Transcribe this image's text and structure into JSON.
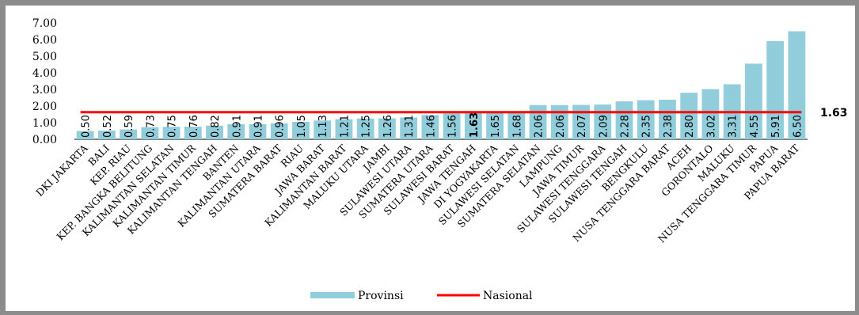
{
  "chart_data": {
    "type": "bar",
    "categories": [
      "DKI JAKARTA",
      "BALI",
      "KEP. RIAU",
      "KEP. BANGKA BELITUNG",
      "KALIMANTAN SELATAN",
      "KALIMANTAN TIMUR",
      "KALIMANTAN TENGAH",
      "BANTEN",
      "KALIMANTAN UTARA",
      "SUMATERA BARAT",
      "RIAU",
      "JAWA BARAT",
      "KALIMANTAN BARAT",
      "MALUKU UTARA",
      "JAMBI",
      "SULAWESI UTARA",
      "SUMATERA UTARA",
      "SULAWESI BARAT",
      "JAWA TENGAH",
      "DI YOGYAKARTA",
      "SULAWESI SELATAN",
      "SUMATERA SELATAN",
      "LAMPUNG",
      "JAWA TIMUR",
      "SULAWESI TENGGARA",
      "SULAWESI TENGAH",
      "BENGKULU",
      "NUSA TENGGARA BARAT",
      "ACEH",
      "GORONTALO",
      "MALUKU",
      "NUSA TENGGARA TIMUR",
      "PAPUA",
      "PAPUA BARAT"
    ],
    "values": [
      0.5,
      0.52,
      0.59,
      0.73,
      0.75,
      0.76,
      0.82,
      0.91,
      0.91,
      0.96,
      1.05,
      1.13,
      1.21,
      1.25,
      1.26,
      1.31,
      1.46,
      1.56,
      1.63,
      1.65,
      1.68,
      2.06,
      2.06,
      2.07,
      2.09,
      2.28,
      2.35,
      2.38,
      2.8,
      3.02,
      3.31,
      4.55,
      5.91,
      6.5
    ],
    "value_labels": [
      "0.50",
      "0.52",
      "0.59",
      "0.73",
      "0.75",
      "0.76",
      "0.82",
      "0.91",
      "0.91",
      "0.96",
      "1.05",
      "1.13",
      "1.21",
      "1.25",
      "1.26",
      "1.31",
      "1.46",
      "1.56",
      "1.63",
      "1.65",
      "1.68",
      "2.06",
      "2.06",
      "2.07",
      "2.09",
      "2.28",
      "2.35",
      "2.38",
      "2.80",
      "3.02",
      "3.31",
      "4.55",
      "5.91",
      "6.50"
    ],
    "highlight_index": 18,
    "national_value": 1.63,
    "national_label": "1.63",
    "ylim": [
      0,
      7
    ],
    "yticks": [
      "0.00",
      "1.00",
      "2.00",
      "3.00",
      "4.00",
      "5.00",
      "6.00",
      "7.00"
    ],
    "series": [
      {
        "name": "Provinsi",
        "color": "#92CDDC"
      },
      {
        "name": "Nasional",
        "color": "#FF0000"
      }
    ],
    "legend_position": "bottom",
    "grid": false
  }
}
